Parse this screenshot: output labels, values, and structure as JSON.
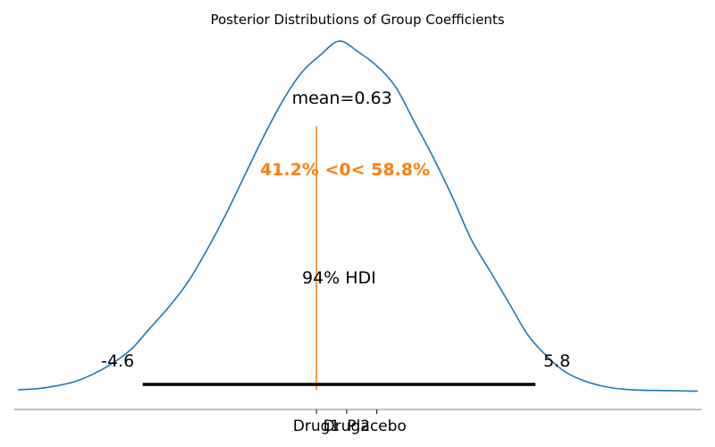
{
  "chart_data": {
    "type": "line",
    "title": "Posterior Distributions of Group Coefficients",
    "xlabel": "",
    "ylabel": "",
    "xlim": [
      -8.0,
      10.2
    ],
    "ylim": [
      0,
      1.0
    ],
    "grid": false,
    "series": [
      {
        "name": "",
        "color": "#1f77b4",
        "x": [
          -7.9,
          -7.4,
          -6.9,
          -6.4,
          -5.9,
          -5.4,
          -4.9,
          -4.4,
          -3.9,
          -3.4,
          -2.9,
          -2.4,
          -1.9,
          -1.4,
          -0.9,
          -0.4,
          0.1,
          0.6,
          1.1,
          1.6,
          2.1,
          2.6,
          3.1,
          3.6,
          4.1,
          4.6,
          5.1,
          5.6,
          6.1,
          6.6,
          7.1,
          7.6,
          8.1,
          8.6,
          9.1,
          9.6,
          10.1
        ],
        "y": [
          0.005,
          0.008,
          0.016,
          0.028,
          0.05,
          0.08,
          0.12,
          0.18,
          0.24,
          0.31,
          0.4,
          0.5,
          0.61,
          0.72,
          0.82,
          0.9,
          0.95,
          0.99,
          0.96,
          0.92,
          0.86,
          0.76,
          0.66,
          0.55,
          0.43,
          0.34,
          0.25,
          0.16,
          0.1,
          0.055,
          0.03,
          0.015,
          0.007,
          0.004,
          0.003,
          0.002,
          0.001
        ]
      }
    ],
    "point_estimate": {
      "label": "mean=0.63",
      "value": 0.63
    },
    "reference": {
      "value": 0,
      "label": "41.2% <0< 58.8%",
      "color": "#ff7f0e"
    },
    "hdi": {
      "label": "94% HDI",
      "low": -4.6,
      "high": 5.8,
      "low_label": "-4.6",
      "high_label": "5.8"
    },
    "x_ticks": [
      {
        "value": 0.0,
        "label": "Drug1"
      },
      {
        "value": 0.8,
        "label": "Drug2"
      },
      {
        "value": 1.6,
        "label": "Placebo"
      }
    ]
  }
}
